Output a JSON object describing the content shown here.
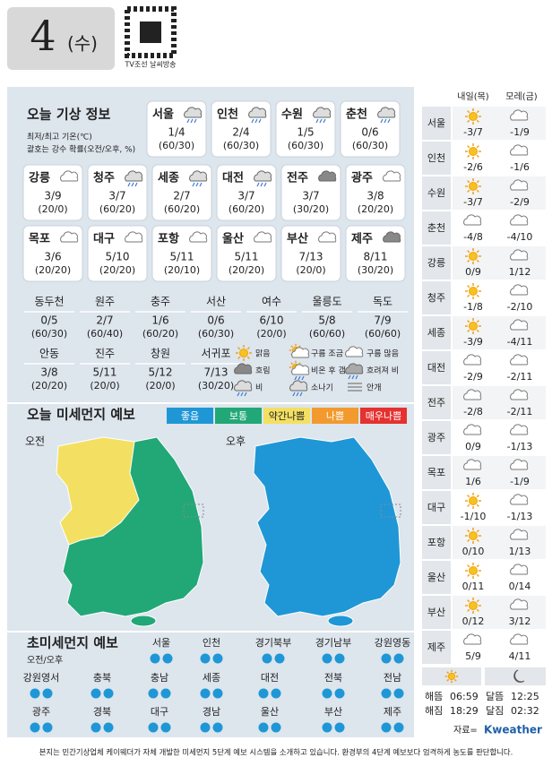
{
  "header": {
    "day": "4",
    "weekday": "(수)",
    "qr_caption": "TV조선 날씨방송"
  },
  "today": {
    "title": "오늘 기상 정보",
    "notes": [
      "최저/최고 기온(℃)",
      "괄호는 강수 확률(오전/오후, %)"
    ],
    "cards": [
      {
        "city": "서울",
        "temp": "1/4",
        "prob": "(60/30)",
        "weather": "비"
      },
      {
        "city": "인천",
        "temp": "2/4",
        "prob": "(60/30)",
        "weather": "비"
      },
      {
        "city": "수원",
        "temp": "1/5",
        "prob": "(60/30)",
        "weather": "비"
      },
      {
        "city": "춘천",
        "temp": "0/6",
        "prob": "(60/30)",
        "weather": "비"
      },
      {
        "city": "강릉",
        "temp": "3/9",
        "prob": "(20/0)",
        "weather": "구름 많음"
      },
      {
        "city": "청주",
        "temp": "3/7",
        "prob": "(60/20)",
        "weather": "비"
      },
      {
        "city": "세종",
        "temp": "2/7",
        "prob": "(60/20)",
        "weather": "비"
      },
      {
        "city": "대전",
        "temp": "3/7",
        "prob": "(60/20)",
        "weather": "비"
      },
      {
        "city": "전주",
        "temp": "3/7",
        "prob": "(30/20)",
        "weather": "흐림"
      },
      {
        "city": "광주",
        "temp": "3/8",
        "prob": "(20/20)",
        "weather": "구름 많음"
      },
      {
        "city": "목포",
        "temp": "3/6",
        "prob": "(20/20)",
        "weather": "구름 많음"
      },
      {
        "city": "대구",
        "temp": "5/10",
        "prob": "(20/20)",
        "weather": "구름 많음"
      },
      {
        "city": "포항",
        "temp": "5/11",
        "prob": "(20/10)",
        "weather": "구름 많음"
      },
      {
        "city": "울산",
        "temp": "5/11",
        "prob": "(20/20)",
        "weather": "구름 많음"
      },
      {
        "city": "부산",
        "temp": "7/13",
        "prob": "(20/0)",
        "weather": "구름 많음"
      },
      {
        "city": "제주",
        "temp": "8/11",
        "prob": "(30/20)",
        "weather": "흐림"
      }
    ],
    "table": [
      {
        "city": "동두천",
        "temp": "0/5",
        "prob": "(60/30)"
      },
      {
        "city": "원주",
        "temp": "2/7",
        "prob": "(60/40)"
      },
      {
        "city": "충주",
        "temp": "1/6",
        "prob": "(60/20)"
      },
      {
        "city": "서산",
        "temp": "0/6",
        "prob": "(60/30)"
      },
      {
        "city": "여수",
        "temp": "6/10",
        "prob": "(20/0)"
      },
      {
        "city": "울릉도",
        "temp": "5/8",
        "prob": "(60/60)"
      },
      {
        "city": "독도",
        "temp": "7/9",
        "prob": "(60/60)"
      },
      {
        "city": "안동",
        "temp": "3/8",
        "prob": "(20/20)"
      },
      {
        "city": "진주",
        "temp": "5/11",
        "prob": "(20/0)"
      },
      {
        "city": "창원",
        "temp": "5/12",
        "prob": "(20/0)"
      },
      {
        "city": "서귀포",
        "temp": "7/13",
        "prob": "(30/20)"
      }
    ],
    "legend": [
      "맑음",
      "구름 조금",
      "구름 많음",
      "흐림",
      "비온 후 갬",
      "흐려져 비",
      "비",
      "소나기",
      "안개"
    ]
  },
  "dust": {
    "title": "오늘 미세먼지 예보",
    "levels": [
      {
        "label": "좋음",
        "color": "#1f97d6"
      },
      {
        "label": "보통",
        "color": "#21a876"
      },
      {
        "label": "약간나쁨",
        "color": "#f3e062"
      },
      {
        "label": "나쁨",
        "color": "#f29a2e"
      },
      {
        "label": "매우나쁨",
        "color": "#e5312f"
      }
    ],
    "am": "오전",
    "pm": "오후"
  },
  "fine_dust": {
    "title": "초미세먼지 예보",
    "subtitle": "오전/오후",
    "regions": [
      "서울",
      "인천",
      "경기북부",
      "경기남부",
      "강원영동",
      "강원영서",
      "충북",
      "충남",
      "세종",
      "대전",
      "전북",
      "전남",
      "광주",
      "경북",
      "대구",
      "경남",
      "울산",
      "부산",
      "제주"
    ]
  },
  "forecast": {
    "columns": [
      "내일(목)",
      "모레(금)"
    ],
    "rows": [
      {
        "city": "서울",
        "t1": "-3/7",
        "w1": "맑음",
        "t2": "-1/9",
        "w2": "구름 많음"
      },
      {
        "city": "인천",
        "t1": "-2/6",
        "w1": "맑음",
        "t2": "-1/6",
        "w2": "구름 많음"
      },
      {
        "city": "수원",
        "t1": "-3/7",
        "w1": "맑음",
        "t2": "-2/9",
        "w2": "구름 많음"
      },
      {
        "city": "춘천",
        "t1": "-4/8",
        "w1": "구름 많음",
        "t2": "-4/10",
        "w2": "구름 많음"
      },
      {
        "city": "강릉",
        "t1": "0/9",
        "w1": "맑음",
        "t2": "1/12",
        "w2": "구름 많음"
      },
      {
        "city": "청주",
        "t1": "-1/8",
        "w1": "맑음",
        "t2": "-2/10",
        "w2": "구름 많음"
      },
      {
        "city": "세종",
        "t1": "-3/9",
        "w1": "맑음",
        "t2": "-4/11",
        "w2": "구름 많음"
      },
      {
        "city": "대전",
        "t1": "-2/9",
        "w1": "구름 많음",
        "t2": "-2/11",
        "w2": "구름 많음"
      },
      {
        "city": "전주",
        "t1": "-2/8",
        "w1": "구름 많음",
        "t2": "-2/11",
        "w2": "구름 많음"
      },
      {
        "city": "광주",
        "t1": "0/9",
        "w1": "구름 많음",
        "t2": "-1/13",
        "w2": "구름 많음"
      },
      {
        "city": "목포",
        "t1": "1/6",
        "w1": "구름 많음",
        "t2": "-1/9",
        "w2": "구름 많음"
      },
      {
        "city": "대구",
        "t1": "-1/10",
        "w1": "맑음",
        "t2": "-1/13",
        "w2": "구름 많음"
      },
      {
        "city": "포항",
        "t1": "0/10",
        "w1": "맑음",
        "t2": "1/13",
        "w2": "구름 많음"
      },
      {
        "city": "울산",
        "t1": "0/11",
        "w1": "맑음",
        "t2": "0/14",
        "w2": "구름 많음"
      },
      {
        "city": "부산",
        "t1": "0/12",
        "w1": "맑음",
        "t2": "3/12",
        "w2": "구름 많음"
      },
      {
        "city": "제주",
        "t1": "5/9",
        "w1": "구름 많음",
        "t2": "4/11",
        "w2": "구름 많음"
      }
    ],
    "sun": [
      {
        "label": "해뜸",
        "time": "06:59"
      },
      {
        "label": "해짐",
        "time": "18:29"
      }
    ],
    "moon": [
      {
        "label": "달뜸",
        "time": "12:25"
      },
      {
        "label": "달짐",
        "time": "02:32"
      }
    ],
    "source_prefix": "자료=",
    "source": "Kweather"
  },
  "footer": "본지는 민간기상업체 케이웨더가 자체 개발한 미세먼지 5단계 예보 시스템을 소개하고 있습니다. 환경부의 4단계 예보보다 엄격하게 농도를 판단합니다."
}
